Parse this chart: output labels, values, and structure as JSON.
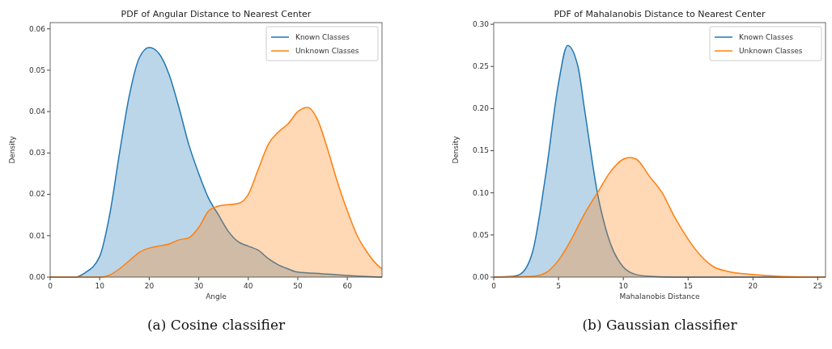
{
  "chart_data": [
    {
      "type": "area",
      "title": "PDF of Angular Distance to Nearest Center",
      "xlabel": "Angle",
      "ylabel": "Density",
      "annotations": [
        "(a) Cosine classifier"
      ],
      "xlim": [
        0,
        67
      ],
      "xticks": [
        0,
        10,
        20,
        30,
        40,
        50,
        60
      ],
      "ylim": [
        0,
        0.0615
      ],
      "yticks": [
        {
          "value": 0,
          "label": "0.00"
        },
        {
          "value": 0.01,
          "label": "0.01"
        },
        {
          "value": 0.02,
          "label": "0.02"
        },
        {
          "value": 0.03,
          "label": "0.03"
        },
        {
          "value": 0.04,
          "label": "0.04"
        },
        {
          "value": 0.05,
          "label": "0.05"
        },
        {
          "value": 0.06,
          "label": "0.06"
        }
      ],
      "legend": "top right",
      "grid": false,
      "series": [
        {
          "name": "Known Classes",
          "color": "#1f77b4",
          "x": [
            0,
            5,
            7,
            10,
            12,
            14,
            16,
            18,
            20,
            22,
            24,
            26,
            28,
            30,
            32,
            34,
            36,
            38,
            40,
            42,
            44,
            46,
            48,
            50,
            55,
            60,
            67
          ],
          "values": [
            0,
            0,
            0.001,
            0.005,
            0.015,
            0.03,
            0.044,
            0.053,
            0.0555,
            0.054,
            0.049,
            0.041,
            0.032,
            0.025,
            0.019,
            0.015,
            0.011,
            0.0085,
            0.0075,
            0.0065,
            0.0045,
            0.003,
            0.002,
            0.0012,
            0.0008,
            0.0004,
            0
          ]
        },
        {
          "name": "Unknown Classes",
          "color": "#ff7f0e",
          "x": [
            0,
            10,
            12,
            14,
            16,
            18,
            20,
            22,
            24,
            26,
            28,
            30,
            32,
            34,
            36,
            38,
            40,
            42,
            44,
            46,
            48,
            50,
            52,
            54,
            56,
            58,
            60,
            62,
            64,
            66,
            67
          ],
          "values": [
            0,
            0,
            0.0005,
            0.002,
            0.004,
            0.006,
            0.007,
            0.0075,
            0.008,
            0.009,
            0.0095,
            0.012,
            0.016,
            0.0172,
            0.0175,
            0.0178,
            0.02,
            0.026,
            0.032,
            0.035,
            0.037,
            0.04,
            0.041,
            0.038,
            0.031,
            0.023,
            0.016,
            0.01,
            0.006,
            0.003,
            0.002
          ]
        }
      ]
    },
    {
      "type": "area",
      "title": "PDF of Mahalanobis Distance to Nearest Center",
      "xlabel": "Mahalanobis Distance",
      "ylabel": "Density",
      "annotations": [
        "(b) Gaussian classifier"
      ],
      "xlim": [
        0,
        25.6
      ],
      "xticks": [
        0,
        5,
        10,
        15,
        20,
        25
      ],
      "ylim": [
        0,
        0.302
      ],
      "yticks": [
        {
          "value": 0,
          "label": "0.00"
        },
        {
          "value": 0.05,
          "label": "0.05"
        },
        {
          "value": 0.1,
          "label": "0.10"
        },
        {
          "value": 0.15,
          "label": "0.15"
        },
        {
          "value": 0.2,
          "label": "0.20"
        },
        {
          "value": 0.25,
          "label": "0.25"
        },
        {
          "value": 0.3,
          "label": "0.30"
        }
      ],
      "legend": "top right",
      "grid": false,
      "series": [
        {
          "name": "Known Classes",
          "color": "#1f77b4",
          "x": [
            0,
            1.5,
            2,
            3,
            4,
            5,
            5.7,
            6.5,
            7,
            8,
            9,
            10,
            11,
            12,
            14,
            25.6
          ],
          "values": [
            0,
            0.001,
            0.003,
            0.03,
            0.12,
            0.23,
            0.275,
            0.25,
            0.2,
            0.1,
            0.04,
            0.012,
            0.003,
            0.001,
            0,
            0
          ]
        },
        {
          "name": "Unknown Classes",
          "color": "#ff7f0e",
          "x": [
            0,
            3,
            4,
            5,
            6,
            7,
            8,
            9,
            10,
            10.5,
            11,
            12,
            13,
            14,
            15,
            16,
            17,
            18,
            20,
            22,
            25.6
          ],
          "values": [
            0,
            0.001,
            0.005,
            0.02,
            0.045,
            0.075,
            0.1,
            0.125,
            0.14,
            0.142,
            0.14,
            0.12,
            0.1,
            0.07,
            0.045,
            0.025,
            0.012,
            0.007,
            0.003,
            0.001,
            0
          ]
        }
      ]
    }
  ]
}
